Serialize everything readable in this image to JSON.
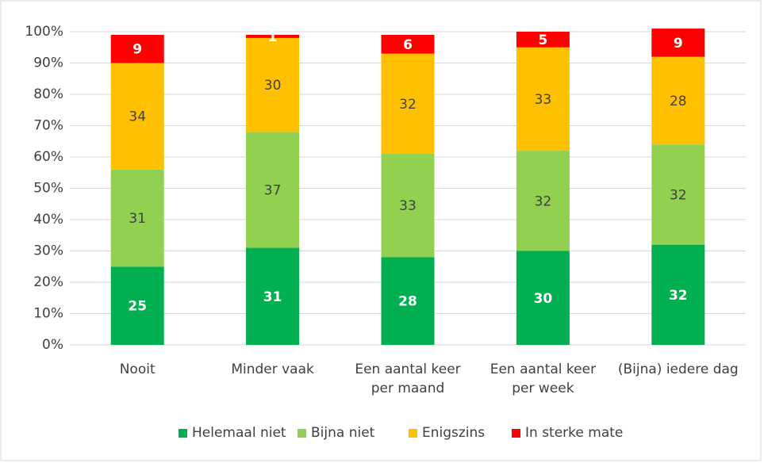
{
  "chart_data": {
    "type": "stacked_bar",
    "categories": [
      "Nooit",
      "Minder vaak",
      "Een aantal keer per maand",
      "Een aantal keer per week",
      "(Bijna) iedere dag"
    ],
    "series": [
      {
        "name": "Helemaal niet",
        "color": "#00b050",
        "values": [
          25,
          31,
          28,
          30,
          32
        ]
      },
      {
        "name": "Bijna niet",
        "color": "#92d050",
        "values": [
          31,
          37,
          33,
          32,
          32
        ]
      },
      {
        "name": "Enigszins",
        "color": "#ffc000",
        "values": [
          34,
          30,
          32,
          33,
          28
        ]
      },
      {
        "name": "In sterke mate",
        "color": "#ff0000",
        "values": [
          9,
          1,
          6,
          5,
          9
        ]
      }
    ],
    "ylim": [
      0,
      100
    ],
    "yticks": [
      {
        "value": 0,
        "label": "0%"
      },
      {
        "value": 10,
        "label": "10%"
      },
      {
        "value": 20,
        "label": "20%"
      },
      {
        "value": 30,
        "label": "30%"
      },
      {
        "value": 40,
        "label": "40%"
      },
      {
        "value": 50,
        "label": "50%"
      },
      {
        "value": 60,
        "label": "60%"
      },
      {
        "value": 70,
        "label": "70%"
      },
      {
        "value": 80,
        "label": "80%"
      },
      {
        "value": 90,
        "label": "90%"
      },
      {
        "value": 100,
        "label": "100%"
      }
    ],
    "grid": true,
    "legend": "bottom"
  }
}
